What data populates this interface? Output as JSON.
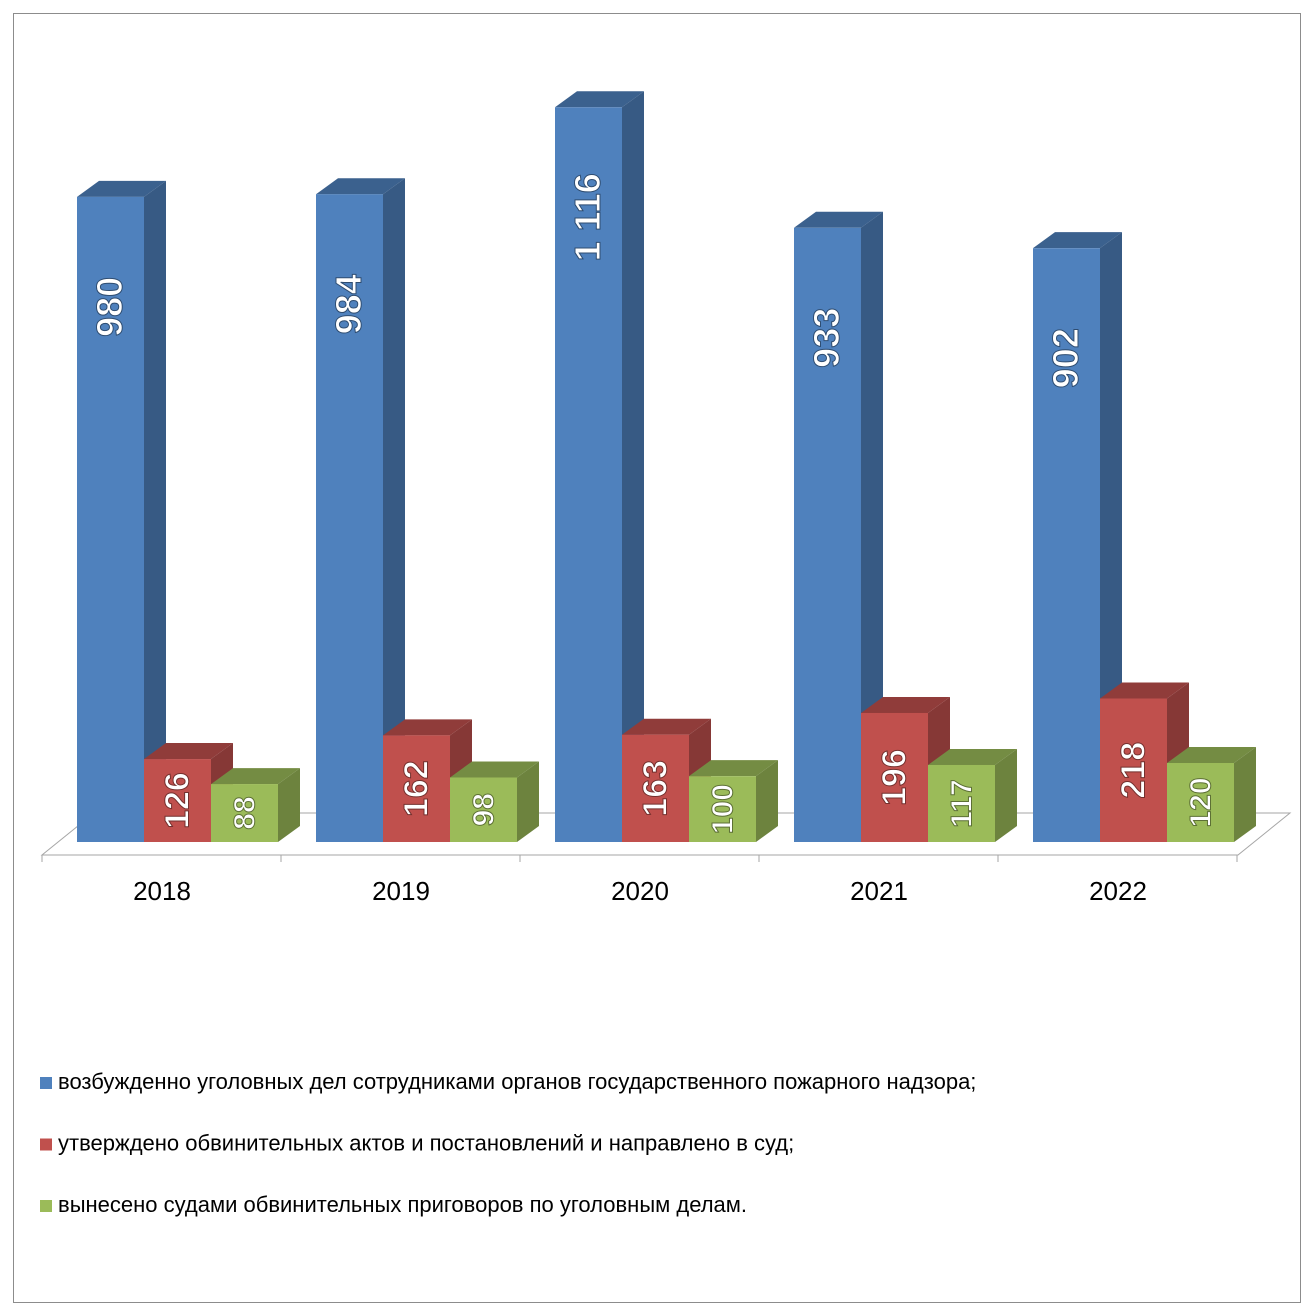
{
  "chart_data": {
    "type": "bar3d",
    "categories": [
      "2018",
      "2019",
      "2020",
      "2021",
      "2022"
    ],
    "series": [
      {
        "name": "возбужденно уголовных дел сотрудниками органов государственного пожарного надзора;",
        "color": "#4f81bd",
        "values": [
          980,
          984,
          1116,
          933,
          902
        ],
        "value_labels": [
          "980",
          "984",
          "1 116",
          "933",
          "902"
        ]
      },
      {
        "name": "утверждено обвинительных актов и постановлений и направлено в суд;",
        "color": "#c0504d",
        "values": [
          126,
          162,
          163,
          196,
          218
        ],
        "value_labels": [
          "126",
          "162",
          "163",
          "196",
          "218"
        ]
      },
      {
        "name": "вынесено судами обвинительных приговоров по уголовным делам.",
        "color": "#9bbb59",
        "values": [
          88,
          98,
          100,
          117,
          120
        ],
        "value_labels": [
          "88",
          "98",
          "100",
          "117",
          "120"
        ]
      }
    ],
    "ylim": [
      0,
      1200
    ]
  }
}
